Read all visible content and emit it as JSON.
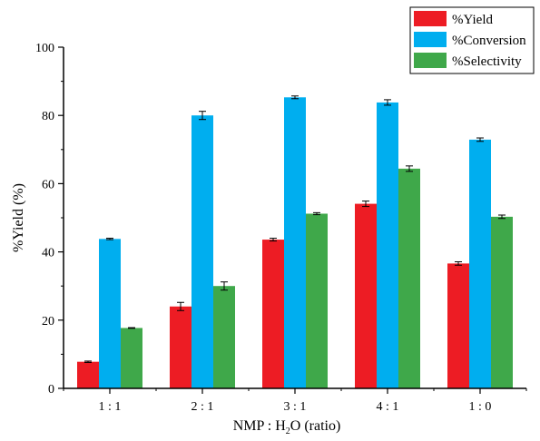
{
  "chart_data": {
    "type": "bar",
    "categories": [
      "1 : 1",
      "2 : 1",
      "3 : 1",
      "4 : 1",
      "1 : 0"
    ],
    "series": [
      {
        "name": "%Yield",
        "color": "#ed1c24",
        "values": [
          7.8,
          24.0,
          43.6,
          54.1,
          36.6
        ],
        "errors": [
          0.2,
          1.2,
          0.4,
          0.8,
          0.5
        ]
      },
      {
        "name": "%Conversion",
        "color": "#00aeef",
        "values": [
          43.8,
          80.0,
          85.3,
          83.8,
          72.9
        ],
        "errors": [
          0.2,
          1.2,
          0.4,
          0.8,
          0.5
        ]
      },
      {
        "name": "%Selectivity",
        "color": "#3fa84a",
        "values": [
          17.7,
          30.0,
          51.2,
          64.4,
          50.3
        ],
        "errors": [
          0.1,
          1.2,
          0.3,
          0.8,
          0.5
        ]
      }
    ],
    "xlabel_pre": "NMP : H",
    "xlabel_sub": "2",
    "xlabel_post": "O (ratio)",
    "ylabel": "%Yield (%)",
    "ylim": [
      0,
      100
    ],
    "yticks": [
      "0",
      "20",
      "40",
      "60",
      "80",
      "100"
    ],
    "legend_position": "top-right",
    "grid": false
  }
}
